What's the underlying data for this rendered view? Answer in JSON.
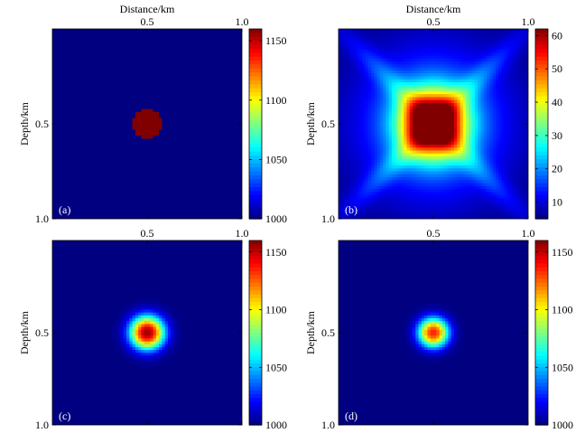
{
  "figure": {
    "xlabel": "Distance/km",
    "ylabel": "Depth/km"
  },
  "chart_data": [
    {
      "type": "heatmap",
      "panel_label": "(a)",
      "show_xlabel": true,
      "xlim": [
        0,
        1.0
      ],
      "ylim": [
        1.0,
        0
      ],
      "xticks": [
        "0.5",
        "1.0"
      ],
      "yticks": [
        "0.5",
        "1.0"
      ],
      "field": {
        "shape": "disk",
        "center": [
          0.5,
          0.5
        ],
        "radius": 0.08,
        "background": 1000,
        "peak": 1160
      },
      "colorbar": {
        "min": 1000,
        "max": 1160,
        "ticks": [
          "1000",
          "1050",
          "1100",
          "1150"
        ]
      }
    },
    {
      "type": "heatmap",
      "panel_label": "(b)",
      "show_xlabel": true,
      "xlim": [
        0,
        1.0
      ],
      "ylim": [
        1.0,
        0
      ],
      "xticks": [
        "0.5",
        "1.0"
      ],
      "yticks": [
        "0.5",
        "1.0"
      ],
      "field": {
        "shape": "gaussian-cross",
        "center": [
          0.5,
          0.5
        ],
        "background": 5,
        "peak": 62
      },
      "colorbar": {
        "min": 5,
        "max": 62,
        "ticks": [
          "10",
          "20",
          "30",
          "40",
          "50",
          "60"
        ]
      }
    },
    {
      "type": "heatmap",
      "panel_label": "(c)",
      "show_xlabel": false,
      "xlim": [
        0,
        1.0
      ],
      "ylim": [
        1.0,
        0
      ],
      "xticks": [
        "0.5",
        "1.0"
      ],
      "yticks": [
        "0.5",
        "1.0"
      ],
      "field": {
        "shape": "smooth-disk",
        "center": [
          0.5,
          0.5
        ],
        "radius": 0.09,
        "background": 1000,
        "peak": 1155
      },
      "colorbar": {
        "min": 1000,
        "max": 1160,
        "ticks": [
          "1000",
          "1050",
          "1100",
          "1150"
        ]
      }
    },
    {
      "type": "heatmap",
      "panel_label": "(d)",
      "show_xlabel": false,
      "xlim": [
        0,
        1.0
      ],
      "ylim": [
        1.0,
        0
      ],
      "xticks": [
        "0.5",
        "1.0"
      ],
      "yticks": [
        "0.5",
        "1.0"
      ],
      "field": {
        "shape": "smooth-disk",
        "center": [
          0.5,
          0.5
        ],
        "radius": 0.08,
        "background": 1000,
        "peak": 1135
      },
      "colorbar": {
        "min": 1000,
        "max": 1160,
        "ticks": [
          "1000",
          "1050",
          "1100",
          "1150"
        ]
      }
    }
  ]
}
